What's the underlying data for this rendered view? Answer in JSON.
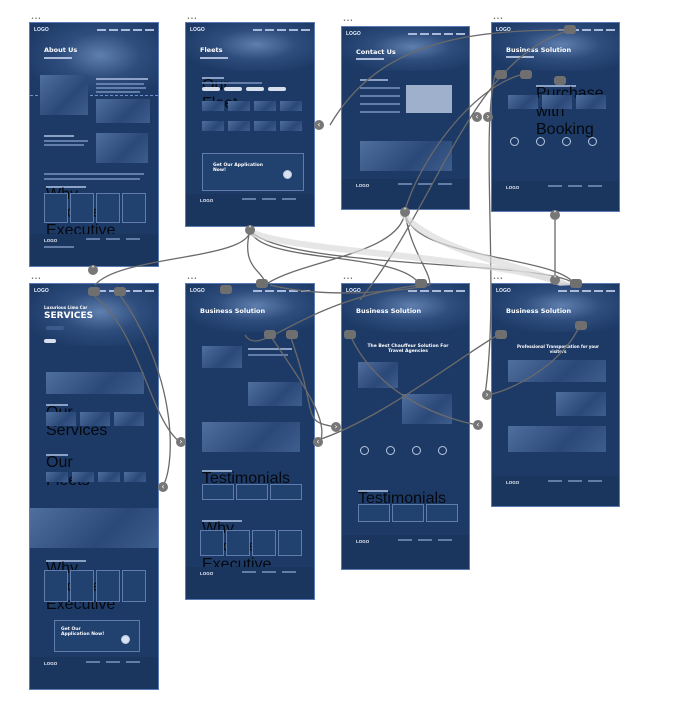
{
  "frames": {
    "about": {
      "label": "•••",
      "logo": "LOGO",
      "title": "About Us",
      "section": "Why Choose Executive",
      "footer_logo": "LOGO"
    },
    "fleets": {
      "label": "•••",
      "logo": "LOGO",
      "title": "Fleets",
      "section": "Our Fleet",
      "cta": "Get Our Application Now!",
      "footer_logo": "LOGO"
    },
    "contact": {
      "label": "•••",
      "logo": "LOGO",
      "title": "Contact Us",
      "footer_logo": "LOGO"
    },
    "business1": {
      "label": "•••",
      "logo": "LOGO",
      "title": "Business Solution",
      "section": "Purchase with Booking",
      "footer_logo": "LOGO"
    },
    "services": {
      "label": "•••",
      "logo": "LOGO",
      "title": "SERVICES",
      "pretitle": "Luxurious Limo Car",
      "section1": "Our Services",
      "section2": "Our Fleets",
      "section3": "Why Choose Executive",
      "cta": "Get Our Application Now!",
      "footer_logo": "LOGO"
    },
    "business2": {
      "label": "•••",
      "logo": "LOGO",
      "title": "Business Solution",
      "section": "Testimonials",
      "section2": "Why Choose Executive",
      "footer_logo": "LOGO"
    },
    "business3": {
      "label": "•••",
      "logo": "LOGO",
      "title": "Business Solution",
      "headline": "The Best Chauffeur Solution For Travel Agencies",
      "section": "Testimonials",
      "footer_logo": "LOGO"
    },
    "business4": {
      "label": "•••",
      "logo": "LOGO",
      "title": "Business Solution",
      "headline": "Professional Transportation for your visitors",
      "footer_logo": "LOGO"
    }
  },
  "controls": {
    "left": "‹",
    "right": "›",
    "up": "˄",
    "down": "˅"
  }
}
